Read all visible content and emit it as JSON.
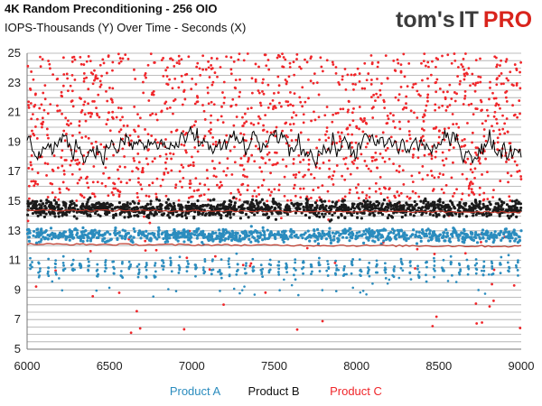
{
  "chart_data": {
    "type": "scatter",
    "title": "4K Random Preconditioning - 256 OIO",
    "subtitle": "IOPS-Thousands (Y) Over Time - Seconds (X)",
    "xlabel": "Seconds",
    "ylabel": "IOPS-Thousands",
    "xlim": [
      6000,
      9000
    ],
    "ylim": [
      5,
      25
    ],
    "x_ticks": [
      6000,
      6500,
      7000,
      7500,
      8000,
      8500,
      9000
    ],
    "y_ticks": [
      5,
      7,
      9,
      11,
      13,
      15,
      17,
      19,
      21,
      23,
      25
    ],
    "grid": true,
    "legend_position": "bottom",
    "series": [
      {
        "name": "Product A",
        "color": "#2b8cbe",
        "scatter_band_center": 12.7,
        "scatter_band_range": [
          12.2,
          13.3
        ],
        "secondary_band_center": 10.5,
        "secondary_band_range": [
          9.8,
          11.3
        ],
        "average": 12.1,
        "average_color": "#c0392b"
      },
      {
        "name": "Product B",
        "color": "#1a1a1a",
        "scatter_band_center": 14.5,
        "scatter_band_range": [
          13.8,
          15.3
        ],
        "average": 14.4,
        "average_color": "#c0392b"
      },
      {
        "name": "Product C",
        "color": "#f0262a",
        "scatter_band_center": 19.5,
        "scatter_band_range": [
          15.0,
          25.0
        ],
        "average": 18.7,
        "average_color": "#000000"
      }
    ]
  },
  "logo": {
    "part1": "tom's",
    "part2": "IT",
    "part3": "PRO"
  }
}
